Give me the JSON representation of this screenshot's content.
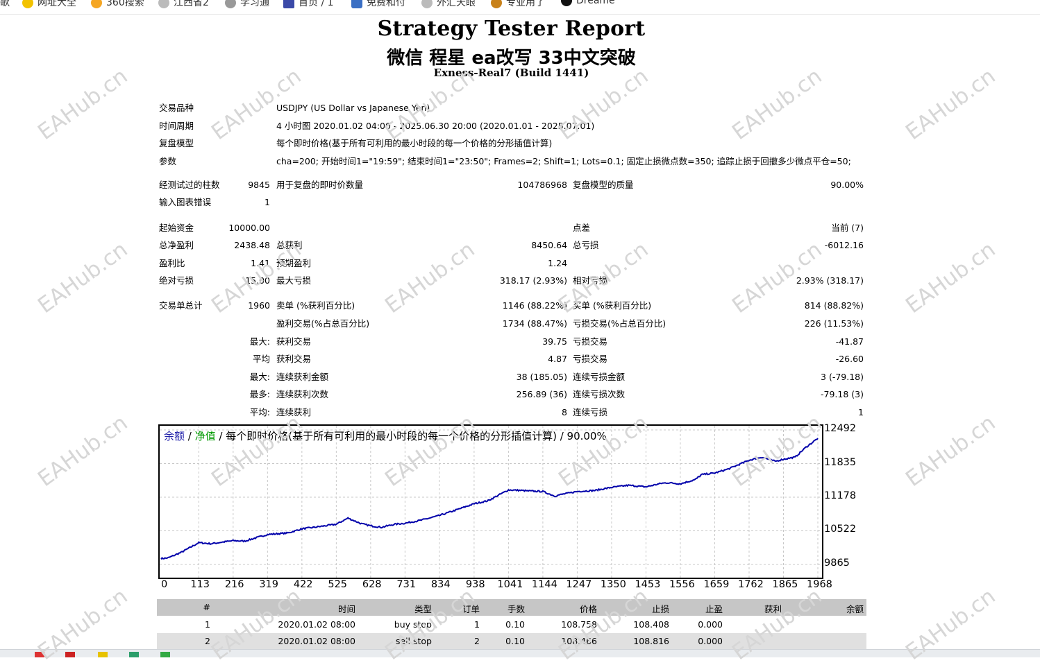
{
  "bookmarks": [
    {
      "label": "歌",
      "icon": "bookmark-icon",
      "color": "#333333"
    },
    {
      "label": "网址大全",
      "icon": "globe-icon",
      "color": "#f2a900"
    },
    {
      "label": "360搜索",
      "icon": "search-icon",
      "color": "#f5a623"
    },
    {
      "label": "江西省2",
      "icon": "page-icon",
      "color": "#999999"
    },
    {
      "label": "学习通",
      "icon": "learning-icon",
      "color": "#888888"
    },
    {
      "label": "首页 / 1",
      "icon": "home-icon",
      "color": "#3b4aa8"
    },
    {
      "label": "免费和付",
      "icon": "dollar-icon",
      "color": "#3a6fc4"
    },
    {
      "label": "外汇天眼",
      "icon": "eye-icon",
      "color": "#aaaaaa"
    },
    {
      "label": "专业用了",
      "icon": "gift-icon",
      "color": "#c8811a"
    },
    {
      "label": "Dreame",
      "icon": "dreame-icon",
      "color": "#111111"
    }
  ],
  "report": {
    "title": "Strategy Tester Report",
    "subtitle": "微信 程星 ea改写 33中文突破",
    "server": "Exness-Real7 (Build 1441)"
  },
  "info": {
    "symbol_label": "交易品种",
    "symbol_value": "USDJPY (US Dollar vs Japanese Yen)",
    "period_label": "时间周期",
    "period_value": "4 小时图 2020.01.02 04:00 - 2025.06.30 20:00 (2020.01.01 - 2025.07.01)",
    "model_label": "复盘模型",
    "model_value": "每个即时价格(基于所有可利用的最小时段的每一个价格的分形插值计算)",
    "params_label": "参数",
    "params_value": "cha=200; 开始时间1=\"19:59\"; 结束时间1=\"23:50\"; Frames=2; Shift=1; Lots=0.1; 固定止损微点数=350; 追踪止损于回撤多少微点平仓=50;"
  },
  "stats": {
    "bars_label": "经测试过的柱数",
    "bars_value": "9845",
    "ticks_label": "用于复盘的即时价数量",
    "ticks_value": "104786968",
    "quality_label": "复盘模型的质量",
    "quality_value": "90.00%",
    "errors_label": "输入图表错误",
    "errors_value": "1",
    "deposit_label": "起始资金",
    "deposit_value": "10000.00",
    "spread_label": "点差",
    "spread_value": "当前 (7)",
    "netprofit_label": "总净盈利",
    "netprofit_value": "2438.48",
    "grossprofit_label": "总获利",
    "grossprofit_value": "8450.64",
    "grossloss_label": "总亏损",
    "grossloss_value": "-6012.16",
    "pf_label": "盈利比",
    "pf_value": "1.41",
    "payoff_label": "预期盈利",
    "payoff_value": "1.24",
    "absdd_label": "绝对亏损",
    "absdd_value": "15.00",
    "maxdd_label": "最大亏损",
    "maxdd_value": "318.17 (2.93%)",
    "reldd_label": "相对亏损",
    "reldd_value": "2.93% (318.17)",
    "total_label": "交易单总计",
    "total_value": "1960",
    "short_label": "卖单 (%获利百分比)",
    "short_value": "1146 (88.22%)",
    "long_label": "买单 (%获利百分比)",
    "long_value": "814 (88.82%)",
    "profit_trades_label": "盈利交易(%占总百分比)",
    "profit_trades_value": "1734 (88.47%)",
    "loss_trades_label": "亏损交易(%占总百分比)",
    "loss_trades_value": "226 (11.53%)",
    "largest_prefix": "最大:",
    "largest_profit_label": "获利交易",
    "largest_profit_value": "39.75",
    "largest_loss_label": "亏损交易",
    "largest_loss_value": "-41.87",
    "avg_prefix": "平均",
    "avg_profit_label": "获利交易",
    "avg_profit_value": "4.87",
    "avg_loss_label": "亏损交易",
    "avg_loss_value": "-26.60",
    "maxcons_prefix": "最大:",
    "maxcons_wins_label": "连续获利金额",
    "maxcons_wins_value": "38 (185.05)",
    "maxcons_losses_label": "连续亏损金额",
    "maxcons_losses_value": "3 (-79.18)",
    "most_prefix": "最多:",
    "most_profit_label": "连续获利次数",
    "most_profit_value": "256.89 (36)",
    "most_loss_label": "连续亏损次数",
    "most_loss_value": "-79.18 (3)",
    "avgcons_prefix": "平均:",
    "avgcons_wins_label": "连续获利",
    "avgcons_wins_value": "8",
    "avgcons_losses_label": "连续亏损",
    "avgcons_losses_value": "1"
  },
  "chart_data": {
    "type": "line",
    "legend": {
      "balance": "余额",
      "sep1": " / ",
      "equity": "净值",
      "sep2": " / ",
      "model": "每个即时价格(基于所有可利用的最小时段的每一个价格的分形插值计算)",
      "sep3": " / ",
      "quality": "90.00%"
    },
    "colors": {
      "line": "#0000aa",
      "balance_text": "#1f1fa8",
      "equity_text": "#009900",
      "grid": "#c8c8c8"
    },
    "grid": true,
    "x_ticks": [
      "0",
      "113",
      "216",
      "319",
      "422",
      "525",
      "628",
      "731",
      "834",
      "938",
      "1041",
      "1144",
      "1247",
      "1350",
      "1453",
      "1556",
      "1659",
      "1762",
      "1865",
      "1968"
    ],
    "y_ticks": [
      "12492",
      "11835",
      "11178",
      "10522",
      "9865"
    ],
    "xlim": [
      0,
      1968
    ],
    "ylim": [
      9865,
      12492
    ],
    "series": [
      {
        "x": [
          0,
          20,
          60,
          113,
          150,
          216,
          250,
          319,
          380,
          422,
          470,
          525,
          560,
          600,
          628,
          660,
          700,
          731,
          780,
          834,
          880,
          938,
          980,
          1000,
          1041,
          1080,
          1100,
          1144,
          1180,
          1190,
          1247,
          1300,
          1350,
          1400,
          1453,
          1500,
          1520,
          1556,
          1600,
          1620,
          1659,
          1700,
          1762,
          1800,
          1840,
          1865,
          1900,
          1930,
          1968
        ],
        "y": [
          9980,
          9990,
          10100,
          10290,
          10270,
          10330,
          10320,
          10450,
          10480,
          10560,
          10600,
          10650,
          10770,
          10660,
          10620,
          10590,
          10650,
          10670,
          10730,
          10820,
          10920,
          11050,
          11110,
          11180,
          11320,
          11310,
          11300,
          11290,
          11200,
          11220,
          11290,
          11310,
          11370,
          11410,
          11380,
          11450,
          11460,
          11440,
          11520,
          11620,
          11650,
          11730,
          11900,
          11960,
          11880,
          11920,
          11960,
          12140,
          12330
        ]
      }
    ]
  },
  "trades": {
    "headers": [
      "#",
      "时间",
      "类型",
      "订单",
      "手数",
      "价格",
      "止损",
      "止盈",
      "获利",
      "余额"
    ],
    "rows": [
      [
        "1",
        "2020.01.02 08:00",
        "buy stop",
        "1",
        "0.10",
        "108.758",
        "108.408",
        "0.000",
        "",
        ""
      ],
      [
        "2",
        "2020.01.02 08:00",
        "sell stop",
        "2",
        "0.10",
        "108.466",
        "108.816",
        "0.000",
        "",
        ""
      ]
    ]
  },
  "watermark": "EAHub.cn"
}
